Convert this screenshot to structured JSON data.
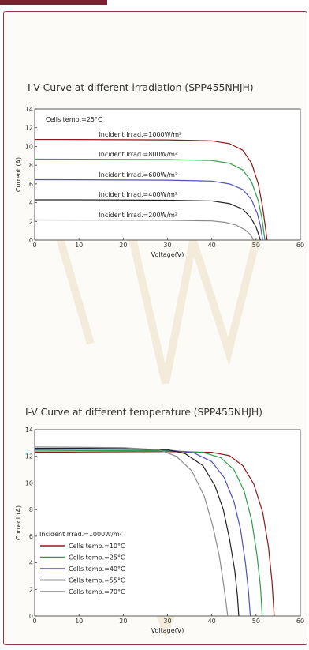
{
  "colors": {
    "accent": "#7a1f2e",
    "frame": "#8a3a46",
    "watermark": "#efe6cf",
    "irradiance_curves": [
      "#8b1a1a",
      "#2e9e4a",
      "#5050c0",
      "#222222",
      "#8c8c8c"
    ],
    "temperature_curves": [
      "#8b1a1a",
      "#2e9e4a",
      "#5050c0",
      "#222222",
      "#8c8c8c"
    ]
  },
  "chart_data": [
    {
      "type": "line",
      "title": "I-V Curve at different irradiation (SPP455NHJH)",
      "xlabel": "Voltage(V)",
      "ylabel": "Current (A)",
      "xlim": [
        0,
        60
      ],
      "ylim": [
        0,
        14
      ],
      "xticks": [
        "0",
        "10",
        "20",
        "30",
        "40",
        "50",
        "60"
      ],
      "yticks": [
        "0",
        "2",
        "4",
        "6",
        "8",
        "10",
        "12",
        "14"
      ],
      "grid": false,
      "annotation": "Cells temp.=25°C",
      "series": [
        {
          "name": "Incident Irrad.=1000W/m²",
          "isc": 10.7,
          "voc": 52.5,
          "knee": 45,
          "points": [
            [
              0,
              10.75
            ],
            [
              10,
              10.74
            ],
            [
              20,
              10.72
            ],
            [
              30,
              10.7
            ],
            [
              40,
              10.6
            ],
            [
              44,
              10.3
            ],
            [
              47,
              9.6
            ],
            [
              49,
              8.2
            ],
            [
              50.5,
              6.0
            ],
            [
              51.5,
              3.5
            ],
            [
              52.5,
              0
            ]
          ]
        },
        {
          "name": "Incident Irrad.=800W/m²",
          "isc": 8.6,
          "voc": 52.0,
          "knee": 44,
          "points": [
            [
              0,
              8.65
            ],
            [
              10,
              8.64
            ],
            [
              20,
              8.62
            ],
            [
              30,
              8.6
            ],
            [
              40,
              8.5
            ],
            [
              44,
              8.2
            ],
            [
              47,
              7.5
            ],
            [
              49,
              6.2
            ],
            [
              50.5,
              4.2
            ],
            [
              51.3,
              2.4
            ],
            [
              52,
              0
            ]
          ]
        },
        {
          "name": "Incident Irrad.=600W/m²",
          "isc": 6.4,
          "voc": 51.5,
          "knee": 44,
          "points": [
            [
              0,
              6.45
            ],
            [
              10,
              6.44
            ],
            [
              20,
              6.42
            ],
            [
              30,
              6.4
            ],
            [
              40,
              6.3
            ],
            [
              44,
              6.0
            ],
            [
              47,
              5.4
            ],
            [
              49,
              4.3
            ],
            [
              50.3,
              2.8
            ],
            [
              51,
              1.5
            ],
            [
              51.5,
              0
            ]
          ]
        },
        {
          "name": "Incident Irrad.=400W/m²",
          "isc": 4.3,
          "voc": 51.0,
          "knee": 43,
          "points": [
            [
              0,
              4.3
            ],
            [
              10,
              4.3
            ],
            [
              20,
              4.28
            ],
            [
              30,
              4.26
            ],
            [
              40,
              4.18
            ],
            [
              44,
              3.9
            ],
            [
              47,
              3.3
            ],
            [
              48.8,
              2.4
            ],
            [
              50,
              1.4
            ],
            [
              51,
              0
            ]
          ]
        },
        {
          "name": "Incident Irrad.=200W/m²",
          "isc": 2.1,
          "voc": 49.5,
          "knee": 42,
          "points": [
            [
              0,
              2.15
            ],
            [
              10,
              2.14
            ],
            [
              20,
              2.13
            ],
            [
              30,
              2.12
            ],
            [
              40,
              2.05
            ],
            [
              43,
              1.9
            ],
            [
              45.5,
              1.6
            ],
            [
              47.5,
              1.1
            ],
            [
              48.7,
              0.6
            ],
            [
              49.5,
              0
            ]
          ]
        }
      ]
    },
    {
      "type": "line",
      "title": "I-V Curve at different temperature (SPP455NHJH)",
      "xlabel": "Voltage(V)",
      "ylabel": "Current (A)",
      "xlim": [
        0,
        60
      ],
      "ylim": [
        0,
        14
      ],
      "xticks": [
        "0",
        "10",
        "20",
        "30",
        "40",
        "50",
        "60"
      ],
      "yticks": [
        "0",
        "2",
        "4",
        "6",
        "8",
        "10",
        "12",
        "14"
      ],
      "grid": false,
      "legend_title": "Incident Irrad.=1000W/m²",
      "legend_position": "lower-left",
      "series": [
        {
          "name": "Cells temp.=10°C",
          "points": [
            [
              0,
              12.3
            ],
            [
              10,
              12.32
            ],
            [
              20,
              12.34
            ],
            [
              30,
              12.35
            ],
            [
              40,
              12.3
            ],
            [
              44,
              12.05
            ],
            [
              47,
              11.3
            ],
            [
              49.5,
              9.9
            ],
            [
              51.5,
              7.8
            ],
            [
              52.8,
              5.2
            ],
            [
              53.6,
              2.6
            ],
            [
              54.1,
              0
            ]
          ]
        },
        {
          "name": "Cells temp.=25°C",
          "points": [
            [
              0,
              12.4
            ],
            [
              10,
              12.42
            ],
            [
              20,
              12.43
            ],
            [
              30,
              12.42
            ],
            [
              38,
              12.3
            ],
            [
              42,
              11.9
            ],
            [
              45,
              11.0
            ],
            [
              47.3,
              9.4
            ],
            [
              49,
              7.2
            ],
            [
              50.2,
              4.6
            ],
            [
              51,
              2.2
            ],
            [
              51.4,
              0
            ]
          ]
        },
        {
          "name": "Cells temp.=40°C",
          "points": [
            [
              0,
              12.5
            ],
            [
              10,
              12.52
            ],
            [
              20,
              12.52
            ],
            [
              30,
              12.48
            ],
            [
              36,
              12.25
            ],
            [
              40,
              11.6
            ],
            [
              42.8,
              10.4
            ],
            [
              45,
              8.6
            ],
            [
              46.5,
              6.5
            ],
            [
              47.6,
              4.0
            ],
            [
              48.3,
              1.8
            ],
            [
              48.7,
              0
            ]
          ]
        },
        {
          "name": "Cells temp.=55°C",
          "points": [
            [
              0,
              12.6
            ],
            [
              10,
              12.6
            ],
            [
              20,
              12.58
            ],
            [
              30,
              12.5
            ],
            [
              34,
              12.2
            ],
            [
              38,
              11.3
            ],
            [
              40.7,
              9.8
            ],
            [
              42.6,
              8.0
            ],
            [
              44,
              5.8
            ],
            [
              45.2,
              3.4
            ],
            [
              45.8,
              1.5
            ],
            [
              46.1,
              0
            ]
          ]
        },
        {
          "name": "Cells temp.=70°C",
          "points": [
            [
              0,
              12.7
            ],
            [
              10,
              12.68
            ],
            [
              20,
              12.65
            ],
            [
              28,
              12.5
            ],
            [
              32,
              12.0
            ],
            [
              35.5,
              10.9
            ],
            [
              38.3,
              9.0
            ],
            [
              40.2,
              6.8
            ],
            [
              41.7,
              4.5
            ],
            [
              42.7,
              2.3
            ],
            [
              43.3,
              0.8
            ],
            [
              43.6,
              0
            ]
          ]
        }
      ]
    }
  ]
}
